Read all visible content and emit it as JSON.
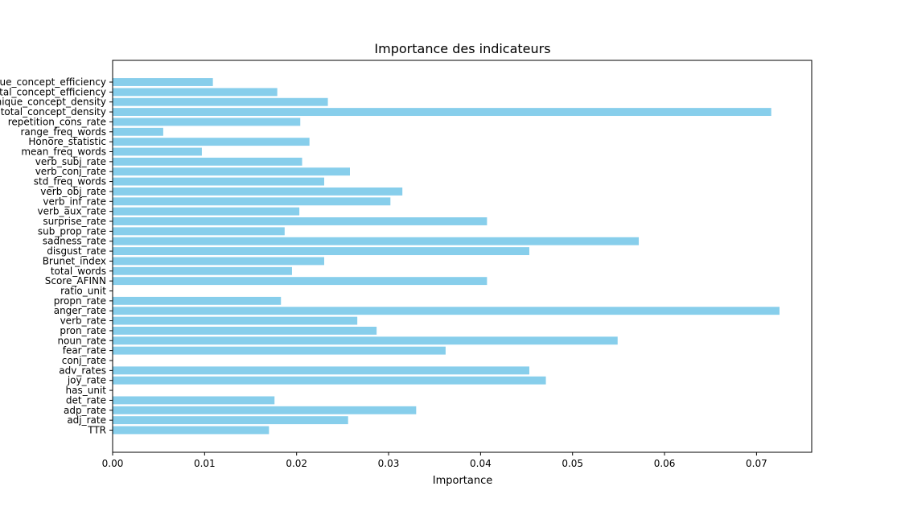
{
  "chart_data": {
    "type": "bar",
    "orientation": "horizontal",
    "title": "Importance des indicateurs",
    "xlabel": "Importance",
    "ylabel": "",
    "xlim": [
      0,
      0.076
    ],
    "xticks": [
      0.0,
      0.01,
      0.02,
      0.03,
      0.04,
      0.05,
      0.06,
      0.07
    ],
    "xtick_labels": [
      "0.00",
      "0.01",
      "0.02",
      "0.03",
      "0.04",
      "0.05",
      "0.06",
      "0.07"
    ],
    "grid": false,
    "bar_color": "#87CEEB",
    "categories": [
      "TTR",
      "adj_rate",
      "adp_rate",
      "det_rate",
      "has_unit",
      "joy_rate",
      "adv_rates",
      "conj_rate",
      "fear_rate",
      "noun_rate",
      "pron_rate",
      "verb_rate",
      "anger_rate",
      "propn_rate",
      "ratio_unit",
      "Score_AFINN",
      "total_words",
      "Brunet_index",
      "disgust_rate",
      "sadness_rate",
      "sub_prop_rate",
      "surprise_rate",
      "verb_aux_rate",
      "verb_inf_rate",
      "verb_obj_rate",
      "std_freq_words",
      "verb_conj_rate",
      "verb_subj_rate",
      "mean_freq_words",
      "Honore_statistic",
      "range_freq_words",
      "repetition_cons_rate",
      "total_concept_density",
      "unique_concept_density",
      "total_concept_efficiency",
      "unique_concept_efficiency"
    ],
    "values": [
      0.017,
      0.0256,
      0.033,
      0.0176,
      0.0,
      0.0471,
      0.0453,
      0.0,
      0.0362,
      0.0549,
      0.0287,
      0.0266,
      0.0725,
      0.0183,
      0.0,
      0.0407,
      0.0195,
      0.023,
      0.0453,
      0.0572,
      0.0187,
      0.0407,
      0.0203,
      0.0302,
      0.0315,
      0.023,
      0.0258,
      0.0206,
      0.0097,
      0.0214,
      0.0055,
      0.0204,
      0.0716,
      0.0234,
      0.0179,
      0.0109
    ]
  }
}
